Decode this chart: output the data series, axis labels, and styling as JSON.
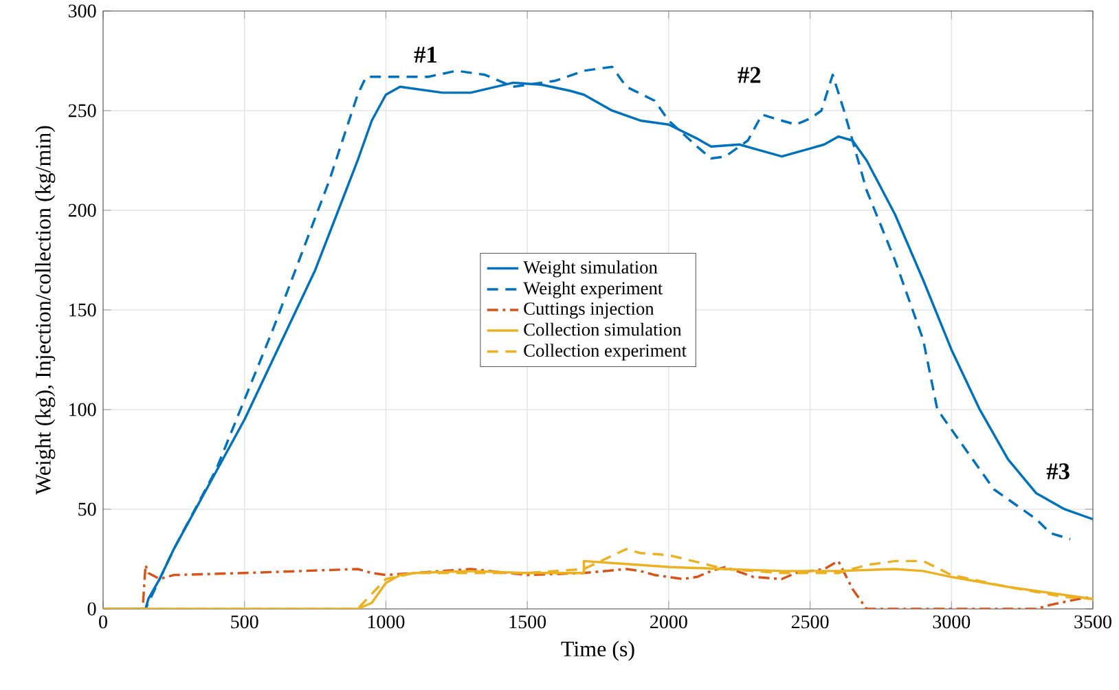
{
  "chart_data": {
    "type": "line",
    "xlabel": "Time (s)",
    "ylabel": "Weight (kg), Injection/collection (kg/min)",
    "xlim": [
      0,
      3500
    ],
    "xticks": [
      0,
      500,
      1000,
      1500,
      2000,
      2500,
      3000,
      3500
    ],
    "ylim": [
      0,
      300
    ],
    "yticks": [
      0,
      50,
      100,
      150,
      200,
      250,
      300
    ],
    "grid": true,
    "legend": "center",
    "marker": "none",
    "annotations": [
      "#1",
      "#2",
      "#3"
    ],
    "series": [
      {
        "name": "Weight simulation",
        "color": "#0072bd",
        "line_style": "solid",
        "x": [
          0,
          150,
          160,
          200,
          250,
          500,
          750,
          900,
          950,
          1000,
          1050,
          1200,
          1300,
          1450,
          1550,
          1650,
          1700,
          1800,
          1900,
          2000,
          2100,
          2150,
          2250,
          2300,
          2400,
          2500,
          2550,
          2600,
          2650,
          2700,
          2800,
          2900,
          3000,
          3100,
          3200,
          3300,
          3400,
          3500
        ],
        "values": [
          0,
          0,
          5,
          15,
          30,
          95,
          170,
          225,
          245,
          258,
          262,
          259,
          259,
          264,
          263,
          260,
          258,
          250,
          245,
          243,
          236,
          232,
          233,
          231,
          227,
          231,
          233,
          237,
          235,
          225,
          198,
          165,
          130,
          100,
          75,
          58,
          50,
          45
        ]
      },
      {
        "name": "Weight experiment",
        "color": "#0072bd",
        "line_style": "dashed",
        "x": [
          0,
          150,
          250,
          400,
          600,
          800,
          900,
          930,
          1000,
          1150,
          1250,
          1350,
          1450,
          1600,
          1700,
          1800,
          1850,
          1950,
          2000,
          2100,
          2150,
          2200,
          2280,
          2330,
          2400,
          2450,
          2500,
          2540,
          2580,
          2620,
          2700,
          2800,
          2900,
          2950,
          3050,
          3150,
          3300,
          3350,
          3420
        ],
        "values": [
          0,
          0,
          30,
          70,
          140,
          215,
          258,
          267,
          267,
          267,
          270,
          268,
          262,
          265,
          270,
          272,
          262,
          255,
          245,
          232,
          226,
          227,
          235,
          248,
          245,
          243,
          246,
          250,
          268,
          250,
          210,
          175,
          135,
          100,
          80,
          60,
          45,
          38,
          35
        ]
      },
      {
        "name": "Cuttings injection",
        "color": "#d95319",
        "line_style": "dashdot",
        "x": [
          0,
          140,
          150,
          160,
          200,
          250,
          500,
          700,
          900,
          950,
          1000,
          1300,
          1500,
          1700,
          1850,
          1900,
          1950,
          2050,
          2100,
          2150,
          2200,
          2300,
          2400,
          2450,
          2550,
          2600,
          2650,
          2700,
          2800,
          3300,
          3350,
          3450,
          3500
        ],
        "values": [
          0,
          0,
          22,
          18,
          15,
          17,
          18,
          19,
          20,
          18,
          17,
          20,
          17,
          18,
          20,
          19,
          17,
          15,
          16,
          19,
          21,
          16,
          15,
          18,
          20,
          24,
          10,
          0,
          0,
          0,
          2,
          5,
          6
        ]
      },
      {
        "name": "Collection simulation",
        "color": "#edb120",
        "line_style": "solid",
        "x": [
          0,
          900,
          950,
          1000,
          1050,
          1100,
          1300,
          1500,
          1700,
          1700,
          1800,
          2000,
          2200,
          2400,
          2600,
          2800,
          2900,
          3000,
          3200,
          3400,
          3500
        ],
        "values": [
          0,
          0,
          3,
          13,
          17,
          18,
          19,
          18,
          18,
          24,
          23,
          21,
          20,
          19,
          19,
          20,
          19,
          16,
          11,
          7,
          5
        ]
      },
      {
        "name": "Collection experiment",
        "color": "#edb120",
        "line_style": "dashed",
        "x": [
          0,
          900,
          1000,
          1100,
          1300,
          1500,
          1700,
          1850,
          1900,
          2000,
          2200,
          2400,
          2600,
          2700,
          2800,
          2900,
          3000,
          3100,
          3200,
          3400,
          3500
        ],
        "values": [
          0,
          0,
          15,
          18,
          18,
          18,
          20,
          30,
          28,
          27,
          20,
          18,
          18,
          22,
          24,
          24,
          17,
          14,
          11,
          6,
          5
        ]
      }
    ]
  }
}
